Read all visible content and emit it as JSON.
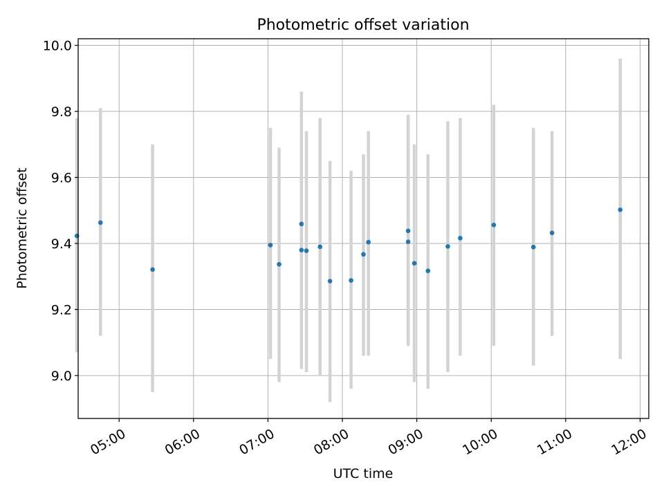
{
  "chart_data": {
    "type": "scatter",
    "title": "Photometric offset variation",
    "xlabel": "UTC time",
    "ylabel": "Photometric offset",
    "x_axis_kind": "time",
    "xlim": [
      "04:27",
      "12:07"
    ],
    "ylim": [
      8.87,
      10.02
    ],
    "x_ticks": [
      "05:00",
      "06:00",
      "07:00",
      "08:00",
      "09:00",
      "10:00",
      "11:00",
      "12:00"
    ],
    "y_ticks": [
      "9.0",
      "9.2",
      "9.4",
      "9.6",
      "9.8",
      "10.0"
    ],
    "grid": true,
    "legend": "none",
    "marker_color": "#1f77b4",
    "errorbar_color": "#d3d3d3",
    "points": [
      {
        "x": "04:26",
        "y": 9.423,
        "low": 9.07,
        "high": 9.78
      },
      {
        "x": "04:45",
        "y": 9.463,
        "low": 9.12,
        "high": 9.81
      },
      {
        "x": "05:27",
        "y": 9.321,
        "low": 8.95,
        "high": 9.7
      },
      {
        "x": "07:02",
        "y": 9.395,
        "low": 9.05,
        "high": 9.75
      },
      {
        "x": "07:09",
        "y": 9.337,
        "low": 8.98,
        "high": 9.69
      },
      {
        "x": "07:27",
        "y": 9.459,
        "low": 9.06,
        "high": 9.86
      },
      {
        "x": "07:27",
        "y": 9.38,
        "low": 9.02,
        "high": 9.74
      },
      {
        "x": "07:31",
        "y": 9.378,
        "low": 9.01,
        "high": 9.74
      },
      {
        "x": "07:42",
        "y": 9.39,
        "low": 9.0,
        "high": 9.78
      },
      {
        "x": "07:50",
        "y": 9.286,
        "low": 8.92,
        "high": 9.65
      },
      {
        "x": "08:07",
        "y": 9.288,
        "low": 8.96,
        "high": 9.62
      },
      {
        "x": "08:17",
        "y": 9.367,
        "low": 9.06,
        "high": 9.67
      },
      {
        "x": "08:21",
        "y": 9.404,
        "low": 9.06,
        "high": 9.74
      },
      {
        "x": "08:53",
        "y": 9.438,
        "low": 9.09,
        "high": 9.79
      },
      {
        "x": "08:53",
        "y": 9.405,
        "low": 9.1,
        "high": 9.78
      },
      {
        "x": "08:58",
        "y": 9.34,
        "low": 8.98,
        "high": 9.7
      },
      {
        "x": "09:09",
        "y": 9.317,
        "low": 8.96,
        "high": 9.67
      },
      {
        "x": "09:25",
        "y": 9.391,
        "low": 9.01,
        "high": 9.77
      },
      {
        "x": "09:35",
        "y": 9.416,
        "low": 9.06,
        "high": 9.78
      },
      {
        "x": "10:02",
        "y": 9.456,
        "low": 9.09,
        "high": 9.82
      },
      {
        "x": "10:34",
        "y": 9.389,
        "low": 9.03,
        "high": 9.75
      },
      {
        "x": "10:49",
        "y": 9.432,
        "low": 9.12,
        "high": 9.74
      },
      {
        "x": "11:44",
        "y": 9.502,
        "low": 9.05,
        "high": 9.96
      }
    ]
  }
}
